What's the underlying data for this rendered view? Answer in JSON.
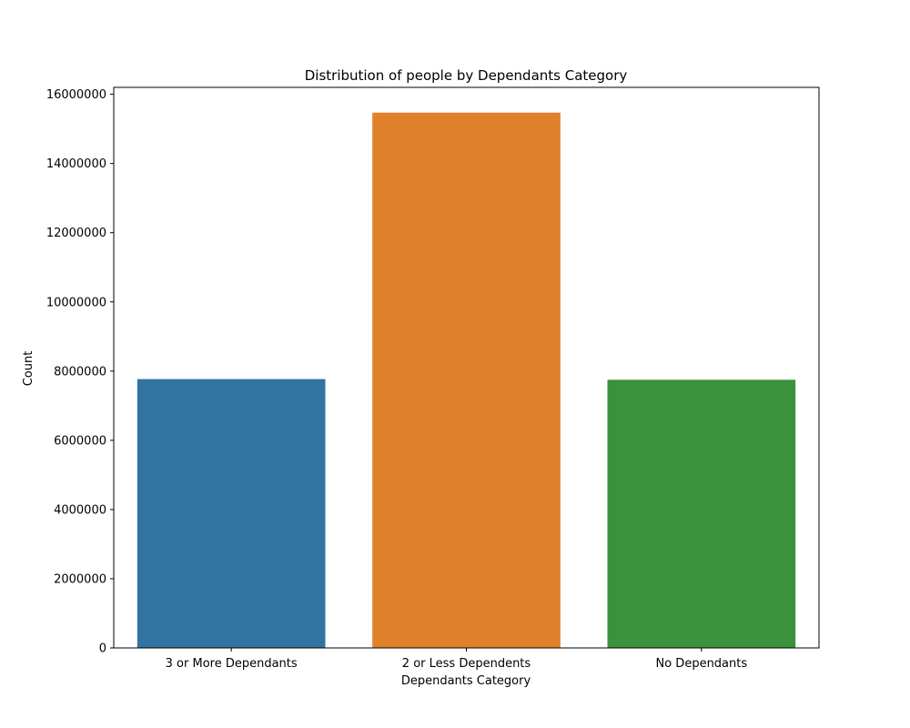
{
  "chart_data": {
    "type": "bar",
    "title": "Distribution of people by Dependants Category",
    "xlabel": "Dependants Category",
    "ylabel": "Count",
    "categories": [
      "3 or More Dependants",
      "2 or Less Dependents",
      "No Dependants"
    ],
    "values": [
      7770000,
      15470000,
      7750000
    ],
    "colors": [
      "#3274a1",
      "#e1812c",
      "#3a923a"
    ],
    "ylim": [
      0,
      16200000
    ],
    "yticks": [
      0,
      2000000,
      4000000,
      6000000,
      8000000,
      10000000,
      12000000,
      14000000,
      16000000
    ],
    "ytick_labels": [
      "0",
      "2000000",
      "4000000",
      "6000000",
      "8000000",
      "10000000",
      "12000000",
      "14000000",
      "16000000"
    ],
    "grid": false,
    "legend": "none"
  }
}
